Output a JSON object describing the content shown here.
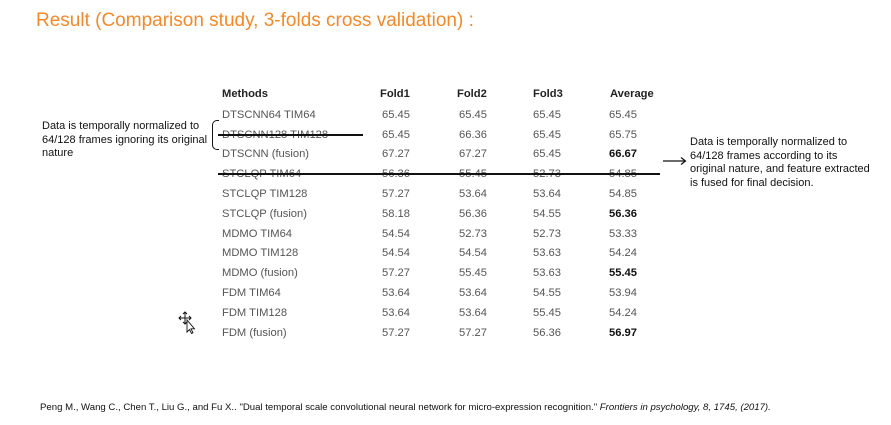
{
  "title": "Result (Comparison study, 3-folds cross validation) :",
  "table": {
    "headers": [
      "Methods",
      "Fold1",
      "Fold2",
      "Fold3",
      "Average"
    ],
    "rows": [
      {
        "method": "DTSCNN64 TIM64",
        "f1": "65.45",
        "f2": "65.45",
        "f3": "65.45",
        "avg": "65.45",
        "bold": false
      },
      {
        "method": "DTSCNN128 TIM128",
        "f1": "65.45",
        "f2": "66.36",
        "f3": "65.45",
        "avg": "65.75",
        "bold": false
      },
      {
        "method": "DTSCNN (fusion)",
        "f1": "67.27",
        "f2": "67.27",
        "f3": "65.45",
        "avg": "66.67",
        "bold": true
      },
      {
        "method": "STCLQP TIM64",
        "f1": "56.36",
        "f2": "55.45",
        "f3": "52.73",
        "avg": "54.85",
        "bold": false
      },
      {
        "method": "STCLQP TIM128",
        "f1": "57.27",
        "f2": "53.64",
        "f3": "53.64",
        "avg": "54.85",
        "bold": false
      },
      {
        "method": "STCLQP (fusion)",
        "f1": "58.18",
        "f2": "56.36",
        "f3": "54.55",
        "avg": "56.36",
        "bold": true
      },
      {
        "method": "MDMO TIM64",
        "f1": "54.54",
        "f2": "52.73",
        "f3": "52.73",
        "avg": "53.33",
        "bold": false
      },
      {
        "method": "MDMO TIM128",
        "f1": "54.54",
        "f2": "54.54",
        "f3": "53.63",
        "avg": "54.24",
        "bold": false
      },
      {
        "method": "MDMO (fusion)",
        "f1": "57.27",
        "f2": "55.45",
        "f3": "53.63",
        "avg": "55.45",
        "bold": true
      },
      {
        "method": "FDM TIM64",
        "f1": "53.64",
        "f2": "53.64",
        "f3": "54.55",
        "avg": "53.94",
        "bold": false
      },
      {
        "method": "FDM TIM128",
        "f1": "53.64",
        "f2": "53.64",
        "f3": "55.45",
        "avg": "54.24",
        "bold": false
      },
      {
        "method": "FDM (fusion)",
        "f1": "57.27",
        "f2": "57.27",
        "f3": "56.36",
        "avg": "56.97",
        "bold": true
      }
    ]
  },
  "note_left": "Data is temporally normalized to 64/128 frames ignoring its original nature",
  "note_right": "Data is temporally normalized to 64/128 frames according to its original nature, and feature extracted is fused for final decision.",
  "citation": {
    "authors": "Peng M., Wang C., Chen T., Liu G., and Fu X.. ",
    "title": "\"Dual temporal scale convolutional neural network for micro-expression recognition.\" ",
    "journal": "Frontiers in psychology, 8, 1745, (2017).",
    "colors": {
      "title": "#f08a2c",
      "text": "#555555"
    }
  }
}
